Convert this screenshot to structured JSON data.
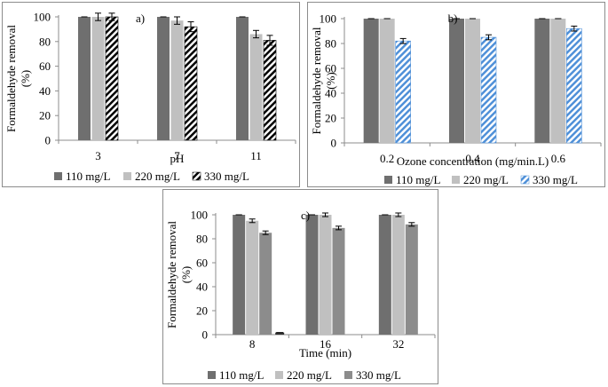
{
  "colors": {
    "s110": "#6f6f6f",
    "s220": "#c0c0c0",
    "s330_a": "#000000",
    "s330_b": "#4f90d8",
    "s330_c": "#8c8c8c",
    "axis": "#8c8c8c"
  },
  "chart_data": [
    {
      "id": "a",
      "type": "bar",
      "panel_label": "a)",
      "categories": [
        "3",
        "7",
        "11"
      ],
      "xlabel": "pH",
      "ylabel": "Formaldehyde removal (%)",
      "ylim": [
        0,
        100
      ],
      "yticks": [
        0,
        20,
        40,
        60,
        80,
        100
      ],
      "grid": false,
      "legend_position": "bottom",
      "series": [
        {
          "name": "110 mg/L",
          "values": [
            100,
            100,
            100
          ],
          "errors": [
            0,
            0,
            0
          ],
          "fill": "solid",
          "color": "#6f6f6f"
        },
        {
          "name": "220 mg/L",
          "values": [
            100,
            97,
            86
          ],
          "errors": [
            3,
            3,
            3
          ],
          "fill": "solid",
          "color": "#c0c0c0"
        },
        {
          "name": "330 mg/L",
          "values": [
            100,
            92,
            81
          ],
          "errors": [
            3,
            4,
            4
          ],
          "fill": "hatch",
          "color": "#000000"
        }
      ]
    },
    {
      "id": "b",
      "type": "bar",
      "panel_label": "b)",
      "categories": [
        "0.2",
        "0.4",
        "0.6"
      ],
      "xlabel": "Ozone concentration (mg/min.L)",
      "ylabel": "Formaldehyde removal (%)",
      "ylim": [
        0,
        100
      ],
      "yticks": [
        0,
        20,
        40,
        60,
        80,
        100
      ],
      "grid": false,
      "legend_position": "bottom",
      "series": [
        {
          "name": "110 mg/L",
          "values": [
            100,
            100,
            100
          ],
          "errors": [
            0,
            0,
            0
          ],
          "fill": "solid",
          "color": "#6f6f6f"
        },
        {
          "name": "220 mg/L",
          "values": [
            100,
            100,
            100
          ],
          "errors": [
            0,
            0,
            0
          ],
          "fill": "solid",
          "color": "#c0c0c0"
        },
        {
          "name": "330 mg/L",
          "values": [
            82,
            85,
            92
          ],
          "errors": [
            2,
            2,
            2
          ],
          "fill": "hatch",
          "color": "#4f90d8"
        }
      ]
    },
    {
      "id": "c",
      "type": "bar",
      "panel_label": "c)",
      "categories": [
        "8",
        "16",
        "32"
      ],
      "xlabel": "Time (min)",
      "ylabel": "Formaldehyde removal (%)",
      "ylim": [
        0,
        100
      ],
      "yticks": [
        0,
        20,
        40,
        60,
        80,
        100
      ],
      "grid": false,
      "legend_position": "bottom",
      "series": [
        {
          "name": "110 mg/L",
          "values": [
            100,
            100,
            100
          ],
          "errors": [
            0,
            0,
            0
          ],
          "fill": "solid",
          "color": "#6f6f6f"
        },
        {
          "name": "220 mg/L",
          "values": [
            95,
            100,
            100
          ],
          "errors": [
            1.5,
            1.5,
            1.5
          ],
          "fill": "solid",
          "color": "#c0c0c0"
        },
        {
          "name": "330 mg/L",
          "values": [
            85,
            89,
            92
          ],
          "errors": [
            1.5,
            1.5,
            1.5
          ],
          "fill": "solid",
          "color": "#8c8c8c"
        }
      ],
      "extra_marks": [
        {
          "category": "8",
          "value": 1,
          "note": "small bar"
        }
      ]
    }
  ]
}
